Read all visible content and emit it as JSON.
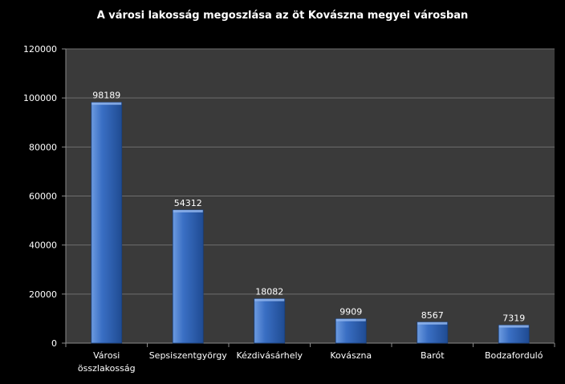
{
  "chart_data": {
    "type": "bar",
    "title": "A városi lakosság megoszlása az öt Kovászna megyei városban",
    "xlabel": "",
    "ylabel": "",
    "categories": [
      [
        "Városi",
        "összlakosság"
      ],
      [
        "Sepsiszentgyörgy"
      ],
      [
        "Kézdivásárhely"
      ],
      [
        "Kovászna"
      ],
      [
        "Barót"
      ],
      [
        "Bodzaforduló"
      ]
    ],
    "values": [
      98189,
      54312,
      18082,
      9909,
      8567,
      7319
    ],
    "ylim": [
      0,
      120000
    ],
    "yticks": [
      0,
      20000,
      40000,
      60000,
      80000,
      100000,
      120000
    ],
    "grid": true,
    "legend": "none",
    "data_labels": true,
    "colors": {
      "background": "#000000",
      "plot_background": "#3a3a3a",
      "gridline": "#6e6e6e",
      "bar_light": "#6d9be0",
      "bar_main": "#3a6fc4",
      "bar_dark": "#1f4b92",
      "text": "#ffffff"
    }
  }
}
